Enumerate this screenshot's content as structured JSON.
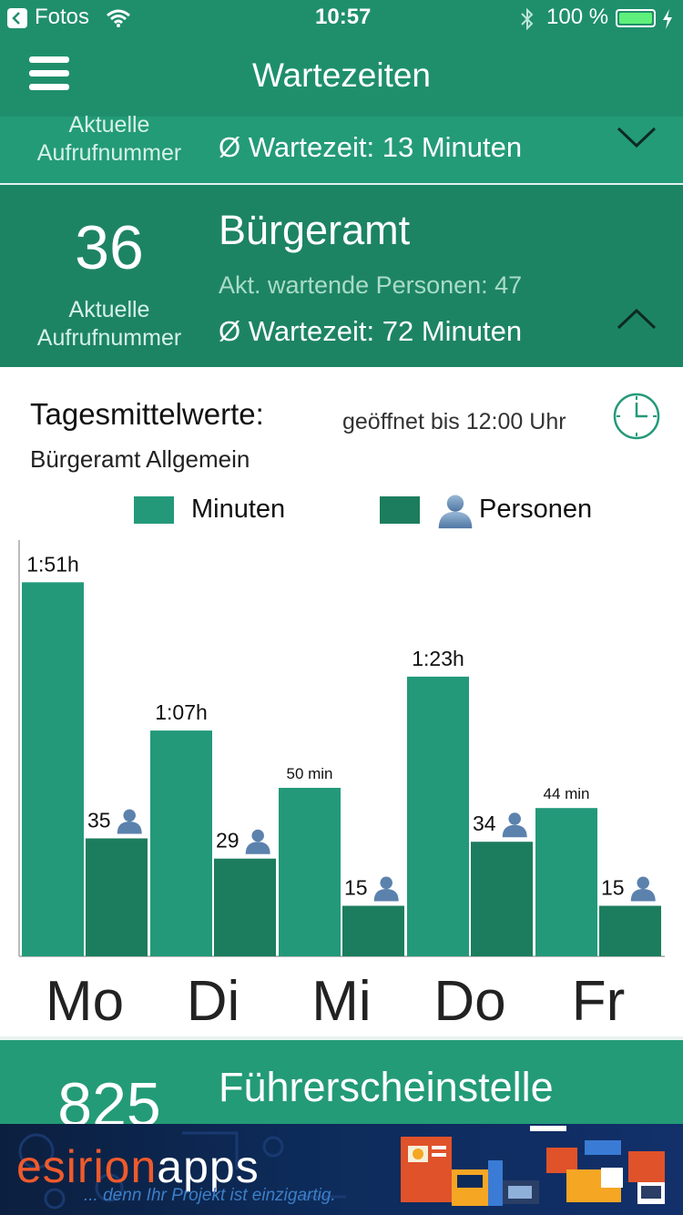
{
  "status_bar": {
    "back_app": "Fotos",
    "time": "10:57",
    "battery_percent": "100 %"
  },
  "navbar": {
    "title": "Wartezeiten"
  },
  "offices": [
    {
      "label_line1": "Aktuelle",
      "label_line2": "Aufrufnummer",
      "wait": "Ø Wartezeit: 13 Minuten"
    },
    {
      "number": "36",
      "name": "Bürgeramt",
      "label_line1": "Aktuelle",
      "label_line2": "Aufrufnummer",
      "waiting": "Akt. wartende Personen: 47",
      "wait": "Ø Wartezeit: 72 Minuten"
    },
    {
      "number": "825",
      "name": "Führerscheinstelle"
    }
  ],
  "detail": {
    "heading": "Tagesmittelwerte:",
    "subheading": "Bürgeramt Allgemein",
    "opening": "geöffnet bis 12:00 Uhr"
  },
  "chart_data": {
    "type": "bar",
    "categories": [
      "Mo",
      "Di",
      "Mi",
      "Do",
      "Fr"
    ],
    "series": [
      {
        "name": "Minuten",
        "values": [
          111,
          67,
          50,
          83,
          44
        ],
        "labels": [
          "1:51h",
          "1:07h",
          "50 min",
          "1:23h",
          "44 min"
        ],
        "color": "#23997a"
      },
      {
        "name": "Personen",
        "values": [
          35,
          29,
          15,
          34,
          15
        ],
        "labels": [
          "35",
          "29",
          "15",
          "34",
          "15"
        ],
        "color": "#1c7d5e"
      }
    ],
    "legend_placement": "top",
    "grid": false
  },
  "ad": {
    "brand_part1": "esirion",
    "brand_part2": "apps",
    "tagline": "... denn Ihr Projekt ist einzigartig."
  },
  "colors": {
    "header": "#1f8f6b",
    "row_light": "#239b76",
    "row_dark": "#1d8463"
  }
}
